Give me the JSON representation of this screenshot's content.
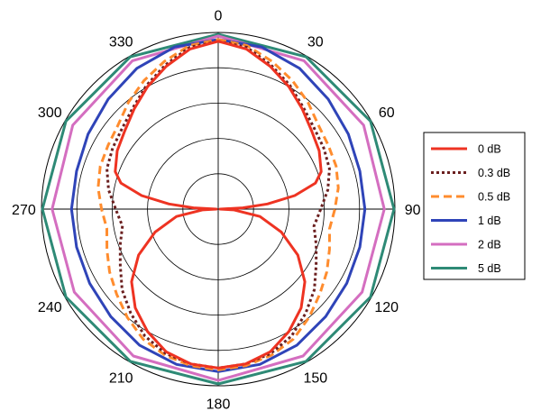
{
  "chart_data": {
    "type": "polar-line",
    "angle_ticks": [
      "0",
      "30",
      "60",
      "90",
      "120",
      "150",
      "180",
      "210",
      "240",
      "270",
      "300",
      "330"
    ],
    "angle_tick_values": [
      0,
      30,
      60,
      90,
      120,
      150,
      180,
      210,
      240,
      270,
      300,
      330
    ],
    "angle_direction": "clockwise",
    "zero_at": "top",
    "r_range": [
      0,
      1
    ],
    "r_gridlines": [
      0.2,
      0.4,
      0.6,
      0.8
    ],
    "grid": true,
    "legend_position": "right",
    "series": [
      {
        "name": "0 dB",
        "color": "#ee3322",
        "dash": "solid",
        "points": [
          [
            0,
            0.95
          ],
          [
            10,
            0.92
          ],
          [
            20,
            0.86
          ],
          [
            30,
            0.8
          ],
          [
            40,
            0.74
          ],
          [
            50,
            0.69
          ],
          [
            60,
            0.66
          ],
          [
            70,
            0.62
          ],
          [
            75,
            0.57
          ],
          [
            80,
            0.44
          ],
          [
            84,
            0.28
          ],
          [
            87,
            0.14
          ],
          [
            90,
            0.01
          ],
          [
            93,
            0.09
          ],
          [
            100,
            0.24
          ],
          [
            110,
            0.38
          ],
          [
            120,
            0.52
          ],
          [
            130,
            0.64
          ],
          [
            140,
            0.73
          ],
          [
            150,
            0.8
          ],
          [
            160,
            0.86
          ],
          [
            170,
            0.89
          ],
          [
            180,
            0.9
          ]
        ]
      },
      {
        "name": "0.3 dB",
        "color": "#6b1f1f",
        "dash": "dotted",
        "points": [
          [
            0,
            0.95
          ],
          [
            10,
            0.93
          ],
          [
            20,
            0.87
          ],
          [
            30,
            0.81
          ],
          [
            40,
            0.75
          ],
          [
            50,
            0.71
          ],
          [
            60,
            0.69
          ],
          [
            70,
            0.67
          ],
          [
            80,
            0.63
          ],
          [
            90,
            0.58
          ],
          [
            96,
            0.56
          ],
          [
            100,
            0.55
          ],
          [
            110,
            0.59
          ],
          [
            120,
            0.64
          ],
          [
            130,
            0.71
          ],
          [
            140,
            0.77
          ],
          [
            150,
            0.83
          ],
          [
            160,
            0.87
          ],
          [
            170,
            0.89
          ],
          [
            180,
            0.9
          ]
        ]
      },
      {
        "name": "0.5 dB",
        "color": "#ff8c2e",
        "dash": "dashed",
        "points": [
          [
            0,
            0.96
          ],
          [
            10,
            0.94
          ],
          [
            20,
            0.89
          ],
          [
            30,
            0.84
          ],
          [
            40,
            0.79
          ],
          [
            50,
            0.74
          ],
          [
            60,
            0.72
          ],
          [
            70,
            0.71
          ],
          [
            80,
            0.69
          ],
          [
            90,
            0.66
          ],
          [
            100,
            0.64
          ],
          [
            110,
            0.67
          ],
          [
            120,
            0.71
          ],
          [
            130,
            0.75
          ],
          [
            140,
            0.8
          ],
          [
            150,
            0.85
          ],
          [
            160,
            0.88
          ],
          [
            170,
            0.9
          ],
          [
            180,
            0.91
          ]
        ]
      },
      {
        "name": "1 dB",
        "color": "#2f44b8",
        "dash": "solid",
        "points": [
          [
            0,
            0.96
          ],
          [
            15,
            0.95
          ],
          [
            30,
            0.92
          ],
          [
            45,
            0.88
          ],
          [
            60,
            0.85
          ],
          [
            75,
            0.83
          ],
          [
            90,
            0.83
          ],
          [
            105,
            0.83
          ],
          [
            120,
            0.84
          ],
          [
            135,
            0.86
          ],
          [
            150,
            0.89
          ],
          [
            165,
            0.91
          ],
          [
            180,
            0.92
          ]
        ]
      },
      {
        "name": "2 dB",
        "color": "#d46ec0",
        "dash": "solid",
        "points": [
          [
            0,
            0.98
          ],
          [
            30,
            0.97
          ],
          [
            60,
            0.95
          ],
          [
            90,
            0.94
          ],
          [
            120,
            0.94
          ],
          [
            150,
            0.96
          ],
          [
            180,
            0.97
          ]
        ]
      },
      {
        "name": "5 dB",
        "color": "#2e8a76",
        "dash": "solid",
        "points": [
          [
            0,
            0.99
          ],
          [
            30,
            0.995
          ],
          [
            60,
            0.995
          ],
          [
            90,
            0.995
          ],
          [
            120,
            0.995
          ],
          [
            150,
            0.995
          ],
          [
            180,
            0.99
          ]
        ]
      }
    ]
  }
}
